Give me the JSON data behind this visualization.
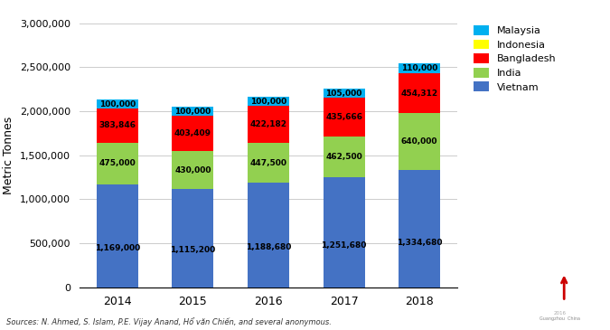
{
  "years": [
    "2014",
    "2015",
    "2016",
    "2017",
    "2018"
  ],
  "vietnam": [
    1169000,
    1115200,
    1188680,
    1251680,
    1334680
  ],
  "india": [
    475000,
    430000,
    447500,
    462500,
    640000
  ],
  "bangladesh": [
    383846,
    403409,
    422182,
    435666,
    454312
  ],
  "indonesia": [
    0,
    0,
    0,
    0,
    0
  ],
  "malaysia": [
    100000,
    100000,
    100000,
    105000,
    110000
  ],
  "colors": {
    "vietnam": "#4472C4",
    "india": "#92D050",
    "bangladesh": "#FF0000",
    "indonesia": "#FFFF00",
    "malaysia": "#00B0F0"
  },
  "labels": {
    "vietnam": "Vietnam",
    "india": "India",
    "bangladesh": "Bangladesh",
    "indonesia": "Indonesia",
    "malaysia": "Malaysia"
  },
  "ylim": [
    0,
    3000000
  ],
  "yticks": [
    0,
    500000,
    1000000,
    1500000,
    2000000,
    2500000,
    3000000
  ],
  "ylabel": "Metric Tonnes",
  "source_text": "Sources: N. Ahmed, S. Islam, P.E. Vijay Anand, Hổ văn Chiến, and several anonymous.",
  "background_color": "#FFFFFF",
  "grid_color": "#CCCCCC"
}
